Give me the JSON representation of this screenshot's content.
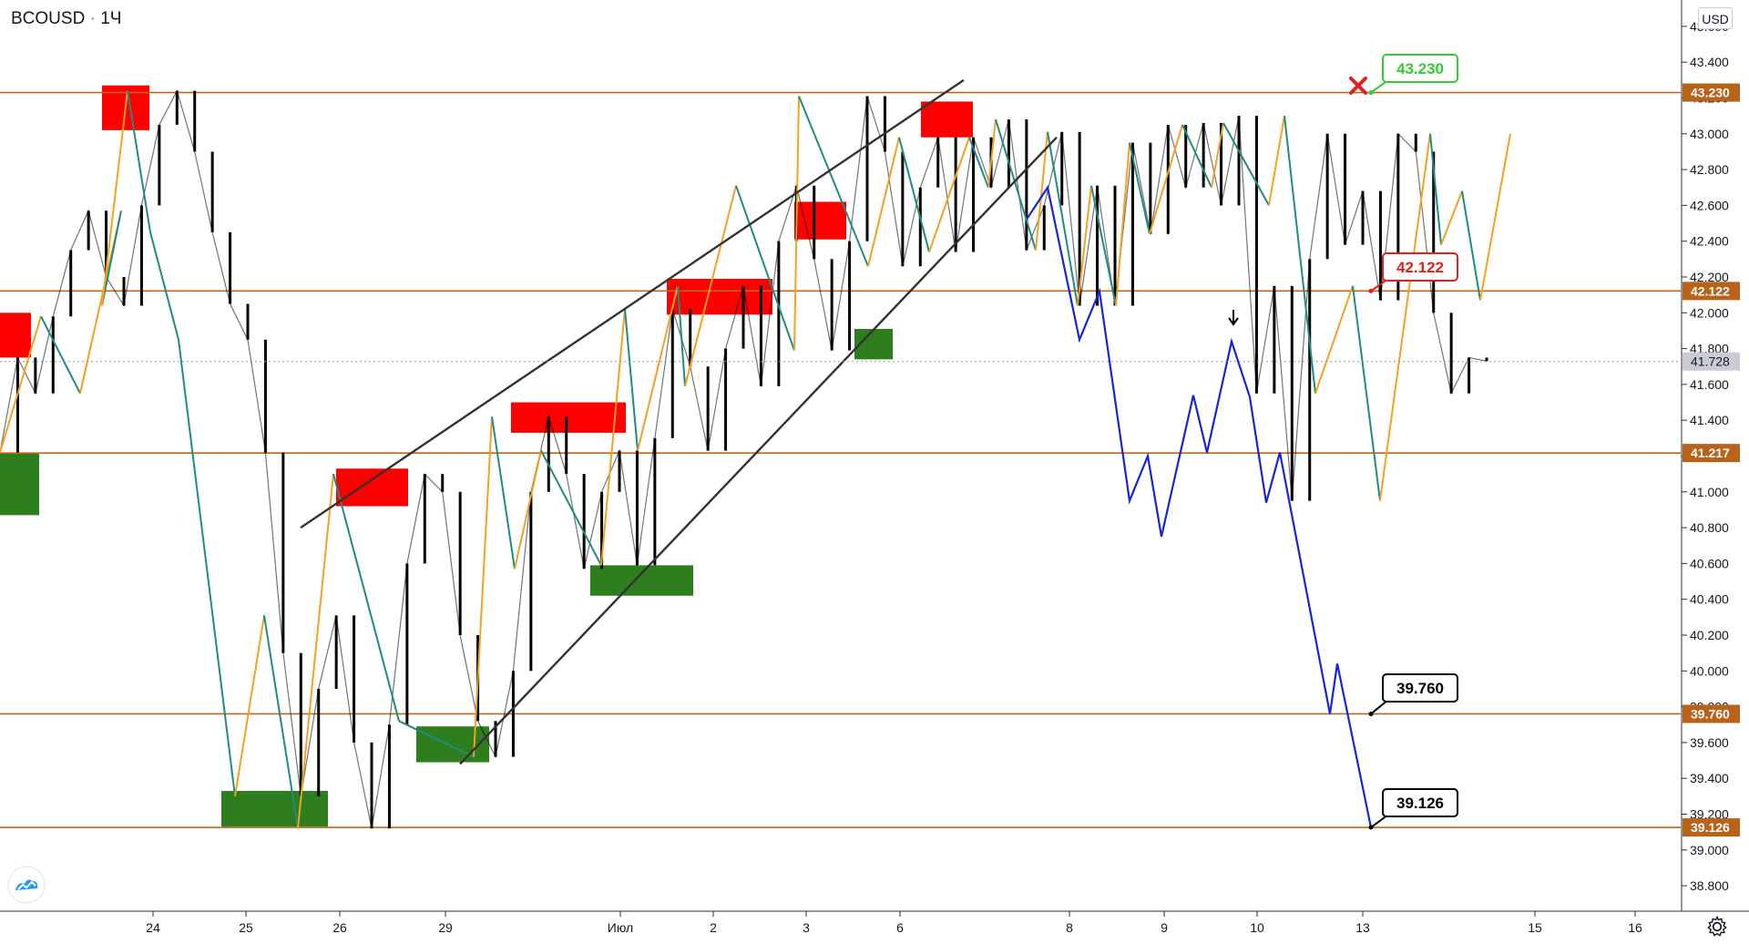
{
  "header": {
    "symbol": "BCOUSD",
    "separator": "·",
    "timeframe": "1Ч"
  },
  "currency_label": "USD",
  "icons": {
    "settings": "gear-icon",
    "logo": "tradingview-logo-icon",
    "stop": "red-cross-icon"
  },
  "colors": {
    "level_line": "#c0661a",
    "level_label_bg": "#b8621a",
    "supply_zone": "#ff0000",
    "demand_zone": "#2e7d1e",
    "zigzag_up": "#f5a020",
    "zigzag_down": "#1e8c7e",
    "channel": "#333333",
    "forecast": "#1426d6",
    "current_price_bg": "#c9ccd3"
  },
  "chart_data": {
    "type": "line",
    "title": "",
    "instrument": "BCOUSD",
    "timeframe": "1Ч",
    "currency": "USD",
    "ylim": [
      38.7,
      43.7
    ],
    "y_ticks": [
      "38.800",
      "39.000",
      "39.200",
      "39.400",
      "39.600",
      "39.800",
      "40.000",
      "40.200",
      "40.400",
      "40.600",
      "40.800",
      "41.000",
      "41.200",
      "41.400",
      "41.600",
      "41.800",
      "42.000",
      "42.200",
      "42.400",
      "42.600",
      "42.800",
      "43.000",
      "43.200",
      "43.400",
      "43.600"
    ],
    "x_ticks": [
      "24",
      "25",
      "26",
      "29",
      "Июл",
      "2",
      "3",
      "6",
      "8",
      "9",
      "10",
      "13",
      "15",
      "16"
    ],
    "current_price": "41.728",
    "levels": [
      {
        "value": 43.23,
        "label": "43.230"
      },
      {
        "value": 42.122,
        "label": "42.122"
      },
      {
        "value": 41.217,
        "label": "41.217"
      },
      {
        "value": 39.76,
        "label": "39.760"
      },
      {
        "value": 39.126,
        "label": "39.126"
      }
    ],
    "annotations": [
      {
        "text": "43.230",
        "style": "target-hit"
      },
      {
        "text": "42.122",
        "style": "entry"
      },
      {
        "text": "39.760",
        "style": "target"
      },
      {
        "text": "39.126",
        "style": "target"
      }
    ],
    "supply_zones": [
      {
        "price_from": 43.02,
        "price_to": 43.27
      },
      {
        "price_from": 42.98,
        "price_to": 43.18
      },
      {
        "price_from": 42.41,
        "price_to": 42.62
      },
      {
        "price_from": 41.99,
        "price_to": 42.19
      },
      {
        "price_from": 41.33,
        "price_to": 41.5
      },
      {
        "price_from": 40.92,
        "price_to": 41.13
      },
      {
        "price_from": 41.75,
        "price_to": 42.0
      }
    ],
    "demand_zones": [
      {
        "price_from": 40.87,
        "price_to": 41.22
      },
      {
        "price_from": 39.13,
        "price_to": 39.33
      },
      {
        "price_from": 39.49,
        "price_to": 39.69
      },
      {
        "price_from": 40.42,
        "price_to": 40.59
      },
      {
        "price_from": 41.74,
        "price_to": 41.91
      }
    ],
    "zigzag": [
      41.22,
      41.98,
      41.55,
      42.57,
      42.04,
      43.24,
      42.45,
      41.85,
      39.3,
      40.31,
      39.12,
      41.1,
      39.72,
      39.52,
      41.42,
      40.57,
      41.23,
      40.59,
      42.02,
      41.23,
      42.15,
      41.59,
      42.71,
      41.79,
      43.21,
      42.26,
      42.98,
      42.34,
      42.98,
      42.7,
      43.08,
      42.35,
      43.01,
      42.04,
      42.71,
      42.04,
      42.95,
      42.44,
      43.05,
      42.7,
      43.06,
      42.6,
      43.1,
      41.55,
      42.15,
      40.95,
      43.0,
      42.38,
      42.68,
      42.07,
      43.0
    ],
    "candle_trace": [
      41.22,
      41.75,
      41.55,
      41.98,
      42.35,
      42.57,
      42.2,
      42.04,
      42.6,
      43.05,
      43.24,
      42.9,
      42.45,
      42.05,
      41.85,
      41.22,
      40.1,
      39.3,
      39.9,
      40.31,
      39.6,
      39.12,
      39.7,
      40.6,
      41.1,
      41.0,
      40.2,
      39.72,
      39.52,
      40.0,
      41.0,
      41.42,
      41.1,
      40.57,
      41.0,
      41.23,
      40.59,
      41.3,
      42.02,
      41.7,
      41.23,
      41.8,
      42.15,
      41.59,
      42.4,
      42.71,
      42.3,
      41.79,
      42.4,
      43.21,
      42.9,
      42.26,
      42.7,
      42.98,
      42.34,
      42.98,
      42.7,
      43.08,
      42.35,
      42.6,
      43.01,
      42.04,
      42.71,
      42.04,
      42.95,
      42.44,
      43.05,
      42.7,
      43.06,
      42.6,
      43.1,
      41.55,
      42.15,
      40.95,
      42.3,
      43.0,
      42.38,
      42.68,
      42.07,
      43.0,
      42.9,
      42.0,
      41.55,
      41.75,
      41.73
    ],
    "forecast_path": [
      42.53,
      42.7,
      41.85,
      42.12,
      40.95,
      41.2,
      40.75,
      41.54,
      41.22,
      41.84,
      41.53,
      40.94,
      41.22,
      39.76,
      40.04,
      39.126
    ],
    "channel_lines": [
      {
        "name": "upper",
        "from_price": 40.8,
        "to_price": 43.3
      },
      {
        "name": "lower",
        "from_price": 39.48,
        "to_price": 42.98
      }
    ]
  }
}
